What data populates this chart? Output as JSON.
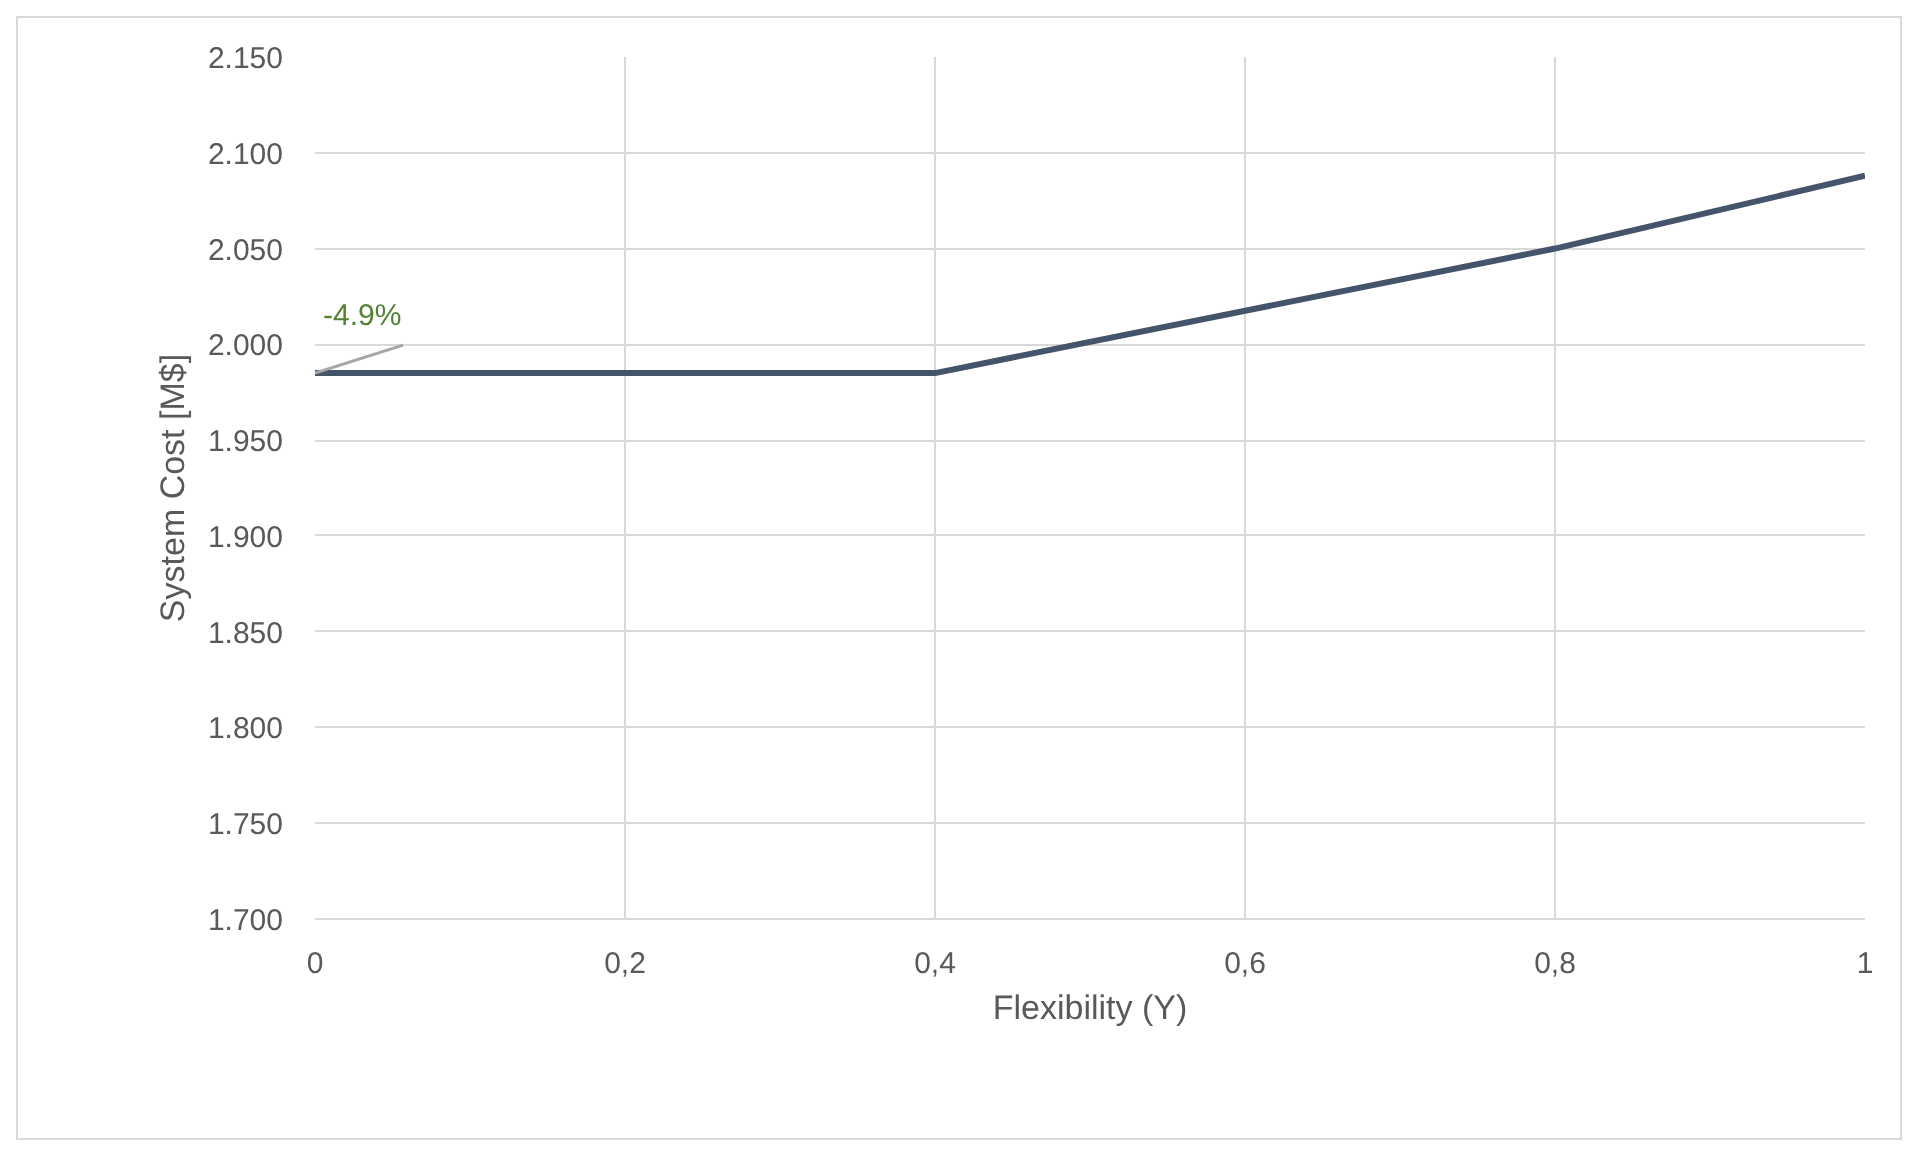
{
  "chart_data": {
    "type": "line",
    "xlabel": "Flexibility (Y)",
    "ylabel": "System Cost [M$]",
    "x": [
      0,
      0.4,
      0.8,
      1
    ],
    "series": [
      {
        "color": "#44546a",
        "values": [
          1985,
          1985,
          2050,
          2088
        ]
      }
    ],
    "xlim": [
      0,
      1
    ],
    "xticks": [
      0,
      {
        "value": 0.2,
        "label": "0,2"
      },
      {
        "value": 0.4,
        "label": "0,4"
      },
      {
        "value": 0.6,
        "label": "0,6"
      },
      {
        "value": 0.8,
        "label": "0,8"
      },
      1
    ],
    "ylim": [
      1700,
      2150
    ],
    "yticks": [
      {
        "value": 1700,
        "label": "1.700"
      },
      {
        "value": 1750,
        "label": "1.750"
      },
      {
        "value": 1800,
        "label": "1.800"
      },
      {
        "value": 1850,
        "label": "1.850"
      },
      {
        "value": 1900,
        "label": "1.900"
      },
      {
        "value": 1950,
        "label": "1.950"
      },
      {
        "value": 2000,
        "label": "2.000"
      },
      {
        "value": 2050,
        "label": "2.050"
      },
      {
        "value": 2100,
        "label": "2.100"
      },
      {
        "value": 2150,
        "label": "2.150"
      }
    ],
    "annotations": [
      {
        "text": "-4.9%",
        "x": 0,
        "y": 1985
      }
    ],
    "grid": true,
    "marker": "none",
    "line_style": "solid"
  }
}
